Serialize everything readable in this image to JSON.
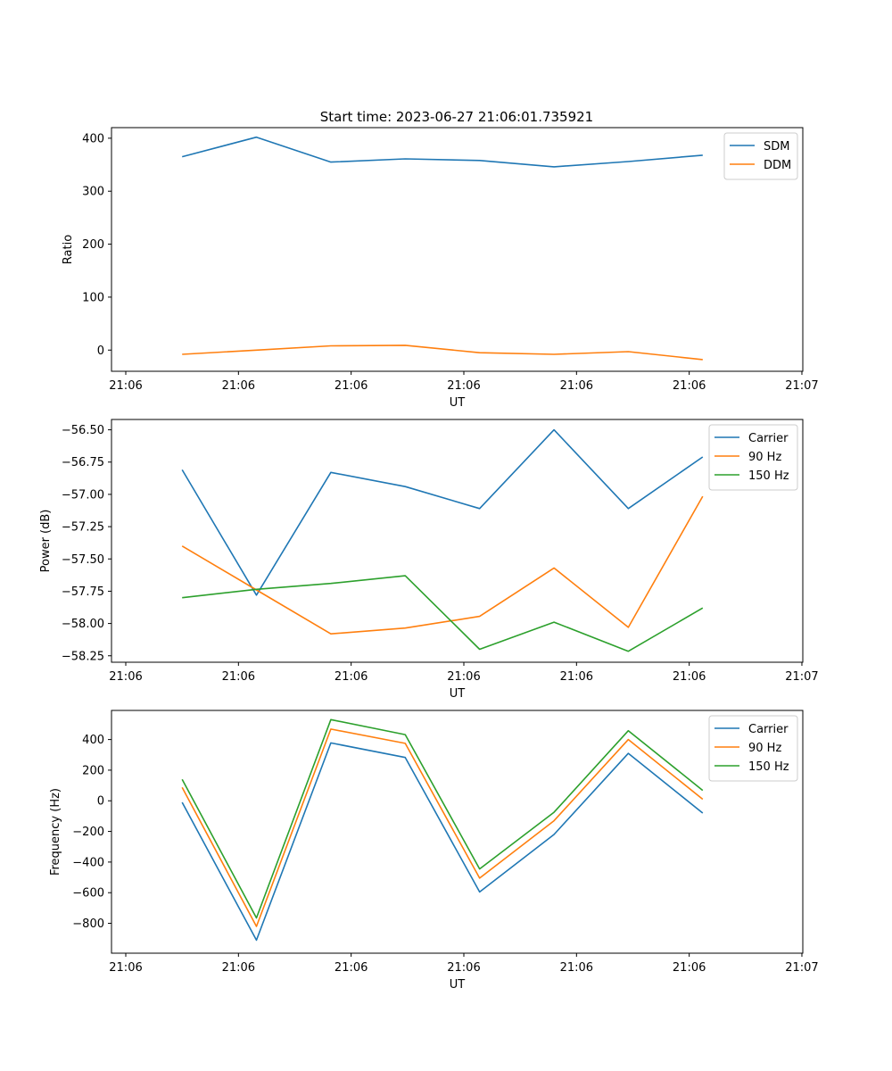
{
  "figure_title": "Start time: 2023-06-27 21:06:01.735921",
  "chart_data": [
    {
      "type": "line",
      "title": "Start time: 2023-06-27 21:06:01.735921",
      "xlabel": "UT",
      "ylabel": "Ratio",
      "x_ticks": [
        "21:06",
        "21:06",
        "21:06",
        "21:06",
        "21:06",
        "21:06",
        "21:07"
      ],
      "x_range": [
        0,
        6
      ],
      "x": [
        0.5,
        1.16,
        1.82,
        2.48,
        3.14,
        3.8,
        4.46,
        5.12
      ],
      "ylim": [
        -40,
        420
      ],
      "y_ticks": [
        "0",
        "100",
        "200",
        "300",
        "400"
      ],
      "y_tick_values": [
        0,
        100,
        200,
        300,
        400
      ],
      "legend_position": "top-right",
      "grid": false,
      "series": [
        {
          "name": "SDM",
          "color": "#1f77b4",
          "values": [
            365,
            402,
            355,
            361,
            358,
            346,
            356,
            368
          ]
        },
        {
          "name": "DDM",
          "color": "#ff7f0e",
          "values": [
            -8,
            0,
            8,
            9,
            -5,
            -8,
            -3,
            -18
          ]
        }
      ]
    },
    {
      "type": "line",
      "xlabel": "UT",
      "ylabel": "Power (dB)",
      "x_ticks": [
        "21:06",
        "21:06",
        "21:06",
        "21:06",
        "21:06",
        "21:06",
        "21:07"
      ],
      "x_range": [
        0,
        6
      ],
      "x": [
        0.5,
        1.16,
        1.82,
        2.48,
        3.14,
        3.8,
        4.46,
        5.12
      ],
      "ylim": [
        -58.3,
        -56.42
      ],
      "y_ticks": [
        "−58.25",
        "−58.00",
        "−57.75",
        "−57.50",
        "−57.25",
        "−57.00",
        "−56.75",
        "−56.50"
      ],
      "y_tick_values": [
        -58.25,
        -58.0,
        -57.75,
        -57.5,
        -57.25,
        -57.0,
        -56.75,
        -56.5
      ],
      "legend_position": "top-right",
      "grid": false,
      "series": [
        {
          "name": "Carrier",
          "color": "#1f77b4",
          "values": [
            -56.81,
            -57.78,
            -56.83,
            -56.94,
            -57.11,
            -56.5,
            -57.11,
            -56.71
          ]
        },
        {
          "name": "90 Hz",
          "color": "#ff7f0e",
          "values": [
            -57.4,
            -57.74,
            -58.08,
            -58.035,
            -57.945,
            -57.57,
            -58.03,
            -57.015
          ]
        },
        {
          "name": "150 Hz",
          "color": "#2ca02c",
          "values": [
            -57.8,
            -57.735,
            -57.69,
            -57.63,
            -58.2,
            -57.99,
            -58.215,
            -57.88
          ]
        }
      ]
    },
    {
      "type": "line",
      "xlabel": "UT",
      "ylabel": "Frequency (Hz)",
      "x_ticks": [
        "21:06",
        "21:06",
        "21:06",
        "21:06",
        "21:06",
        "21:06",
        "21:07"
      ],
      "x_range": [
        0,
        6
      ],
      "x": [
        0.5,
        1.16,
        1.82,
        2.48,
        3.14,
        3.8,
        4.46,
        5.12
      ],
      "ylim": [
        -995,
        590
      ],
      "y_ticks": [
        "−800",
        "−600",
        "−400",
        "−200",
        "0",
        "200",
        "400"
      ],
      "y_tick_values": [
        -800,
        -600,
        -400,
        -200,
        0,
        200,
        400
      ],
      "legend_position": "top-right",
      "grid": false,
      "series": [
        {
          "name": "Carrier",
          "color": "#1f77b4",
          "values": [
            -10,
            -910,
            378,
            283,
            -595,
            -220,
            310,
            -80
          ]
        },
        {
          "name": "90 Hz",
          "color": "#ff7f0e",
          "values": [
            87,
            -820,
            468,
            375,
            -505,
            -130,
            400,
            10
          ]
        },
        {
          "name": "150 Hz",
          "color": "#2ca02c",
          "values": [
            140,
            -765,
            530,
            432,
            -445,
            -75,
            458,
            68
          ]
        }
      ]
    }
  ]
}
